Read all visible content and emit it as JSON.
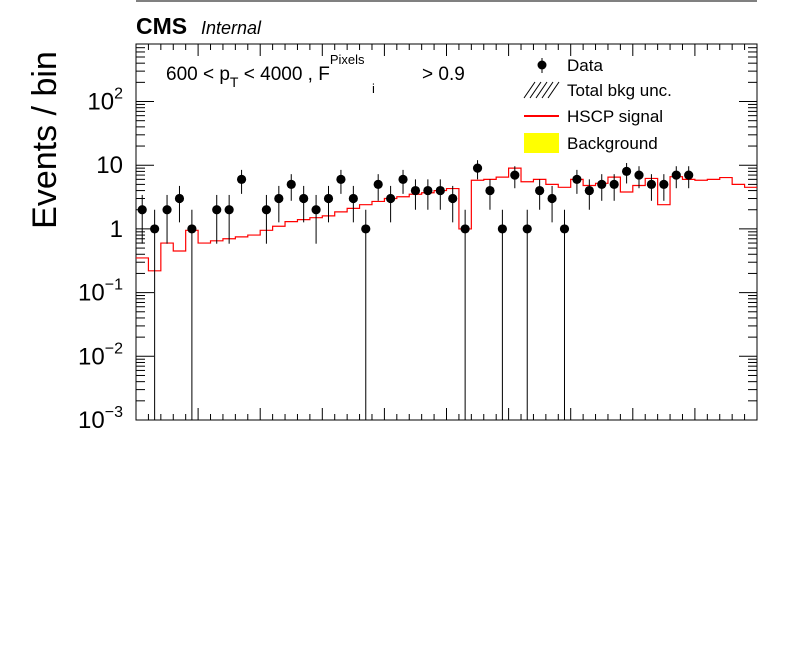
{
  "header": {
    "experiment": "CMS",
    "status": "Internal"
  },
  "chart_data": {
    "type": "bar",
    "title": "",
    "xlabel": "",
    "ylabel": "Events / bin",
    "log_y": true,
    "ylim": [
      0.001,
      800
    ],
    "xlim": [
      0,
      50
    ],
    "x_tick_labels_shown": false,
    "y_ticks": [
      {
        "value": 0.001,
        "base": "10",
        "exp": "−3"
      },
      {
        "value": 0.01,
        "base": "10",
        "exp": "−2"
      },
      {
        "value": 0.1,
        "base": "10",
        "exp": "−1"
      },
      {
        "value": 1,
        "base": "1",
        "exp": ""
      },
      {
        "value": 10,
        "base": "10",
        "exp": ""
      },
      {
        "value": 100,
        "base": "10",
        "exp": "2"
      }
    ],
    "cut_label": {
      "pre": "600 < p",
      "pt_sub": "T",
      "mid": " < 4000 , F",
      "f_sub": "i",
      "f_sup": "Pixels",
      "post": " > 0.9"
    },
    "legend": {
      "position": "top-right",
      "entries": [
        {
          "key": "data",
          "label": "Data"
        },
        {
          "key": "unc",
          "label": "Total bkg unc."
        },
        {
          "key": "signal",
          "label": "HSCP signal"
        },
        {
          "key": "background",
          "label": "Background"
        }
      ]
    },
    "colors": {
      "signal": "#ff0000",
      "background": "#ffff00",
      "data": "#000000"
    },
    "series": [
      {
        "name": "Data",
        "kind": "points",
        "values": [
          2,
          1,
          2,
          3,
          1,
          0,
          2,
          2,
          6,
          0,
          2,
          3,
          5,
          3,
          2,
          3,
          6,
          3,
          1,
          5,
          3,
          6,
          4,
          4,
          4,
          3,
          1,
          9,
          4,
          1,
          7,
          1,
          4,
          3,
          1,
          6,
          4,
          5,
          5,
          8,
          7,
          5,
          5,
          7,
          7,
          0,
          0,
          0,
          0,
          0
        ]
      },
      {
        "name": "HSCP signal",
        "kind": "step",
        "values": [
          0.35,
          0.22,
          0.6,
          0.45,
          0.95,
          0.6,
          0.65,
          0.7,
          0.75,
          0.8,
          0.95,
          1.1,
          1.3,
          1.4,
          1.5,
          1.6,
          1.85,
          2.1,
          2.4,
          2.7,
          3.0,
          3.2,
          3.5,
          3.7,
          4.0,
          4.3,
          1.0,
          5.8,
          6.0,
          6.5,
          9.0,
          5.5,
          6.0,
          5.0,
          4.5,
          6.0,
          4.8,
          5.2,
          6.5,
          3.8,
          4.8,
          6.2,
          2.4,
          6.6,
          6.0,
          5.8,
          6.0,
          6.4,
          5.0,
          4.5
        ]
      }
    ]
  }
}
